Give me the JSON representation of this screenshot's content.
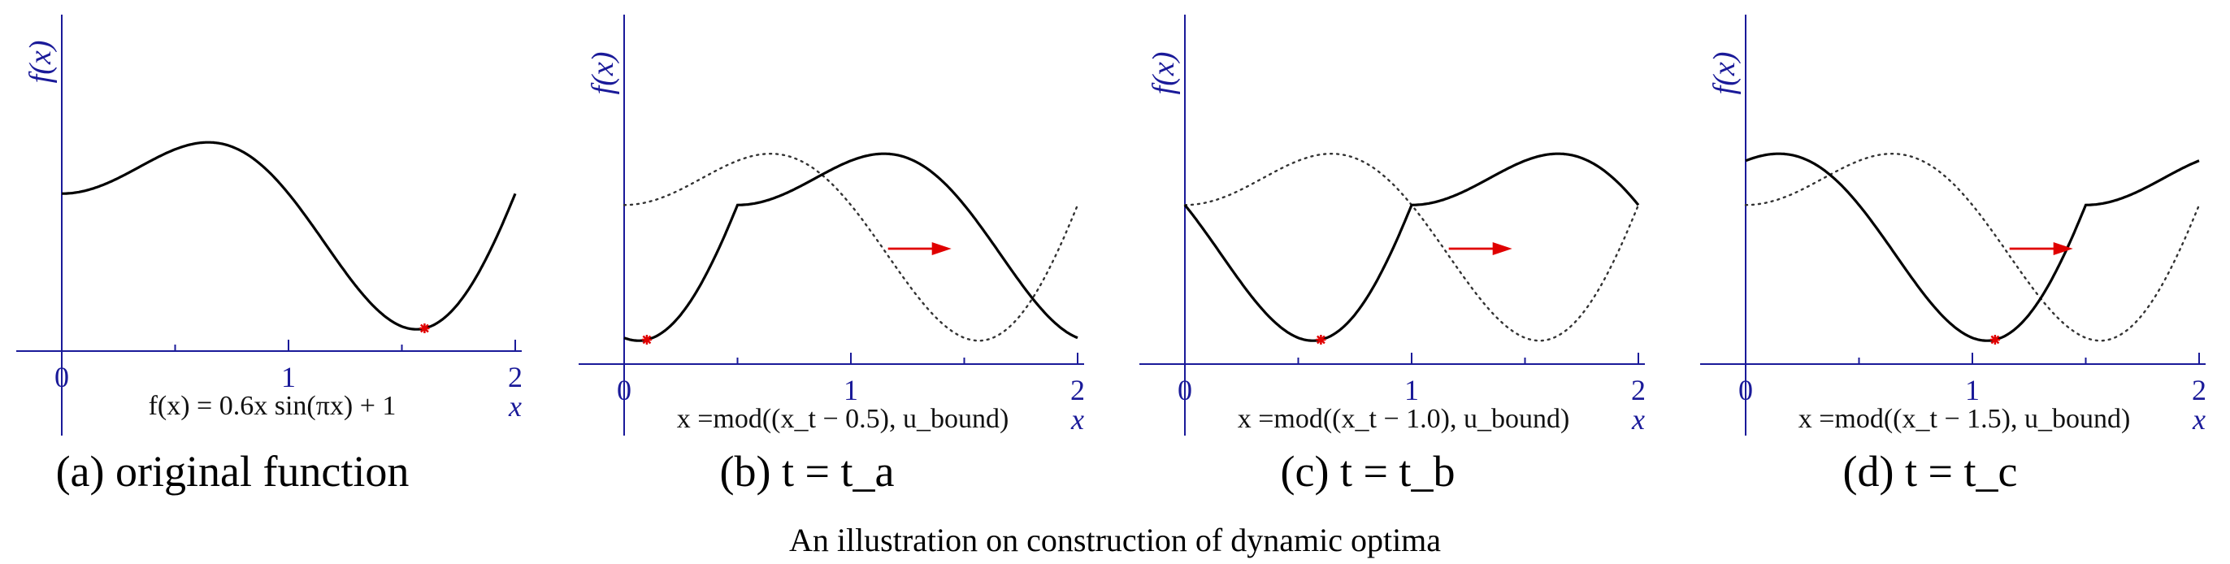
{
  "colors": {
    "axis": "#1a1a99",
    "curve": "#000000",
    "marker": "#e00000",
    "arrow": "#e00000"
  },
  "figure_caption": "An illustration on construction of dynamic optima",
  "chart_data": [
    {
      "type": "line",
      "caption": "(a) original function",
      "ylabel": "f(x)",
      "xlabel": "x",
      "formula": "f(x) = 0.6x sin(πx) + 1",
      "x_ticks": [
        "0",
        "1",
        "2"
      ],
      "xlim": [
        0,
        2
      ],
      "ylim": [
        0,
        2
      ],
      "shift": 0,
      "show_original_dotted": false,
      "arrow": false,
      "minimum_marker": {
        "x": 1.6,
        "y": 0.04
      },
      "series": [
        {
          "style": "solid",
          "function": "0.6*x*sin(pi*x)+1"
        }
      ]
    },
    {
      "type": "line",
      "caption": "(b) t = t_a",
      "ylabel": "f(x)",
      "xlabel": "x",
      "formula": "x =mod((x_t − 0.5), u_bound)",
      "x_ticks": [
        "0",
        "1",
        "2"
      ],
      "xlim": [
        0,
        2
      ],
      "ylim": [
        0,
        2
      ],
      "shift": 0.5,
      "show_original_dotted": true,
      "arrow": true,
      "minimum_marker": {
        "x": 0.1,
        "y": 0.04
      },
      "series": [
        {
          "style": "solid",
          "function": "f(mod(x - 0.5, 2))"
        },
        {
          "style": "dotted",
          "function": "0.6*x*sin(pi*x)+1"
        }
      ]
    },
    {
      "type": "line",
      "caption": "(c) t = t_b",
      "ylabel": "f(x)",
      "xlabel": "x",
      "formula": "x =mod((x_t − 1.0), u_bound)",
      "x_ticks": [
        "0",
        "1",
        "2"
      ],
      "xlim": [
        0,
        2
      ],
      "ylim": [
        0,
        2
      ],
      "shift": 1.0,
      "show_original_dotted": true,
      "arrow": true,
      "minimum_marker": {
        "x": 0.6,
        "y": 0.04
      },
      "series": [
        {
          "style": "solid",
          "function": "f(mod(x - 1.0, 2))"
        },
        {
          "style": "dotted",
          "function": "0.6*x*sin(pi*x)+1"
        }
      ]
    },
    {
      "type": "line",
      "caption": "(d) t = t_c",
      "ylabel": "f(x)",
      "xlabel": "x",
      "formula": "x =mod((x_t − 1.5), u_bound)",
      "x_ticks": [
        "0",
        "1",
        "2"
      ],
      "xlim": [
        0,
        2
      ],
      "ylim": [
        0,
        2
      ],
      "shift": 1.5,
      "show_original_dotted": true,
      "arrow": true,
      "minimum_marker": {
        "x": 1.1,
        "y": 0.04
      },
      "series": [
        {
          "style": "solid",
          "function": "f(mod(x - 1.5, 2))"
        },
        {
          "style": "dotted",
          "function": "0.6*x*sin(pi*x)+1"
        }
      ]
    }
  ]
}
